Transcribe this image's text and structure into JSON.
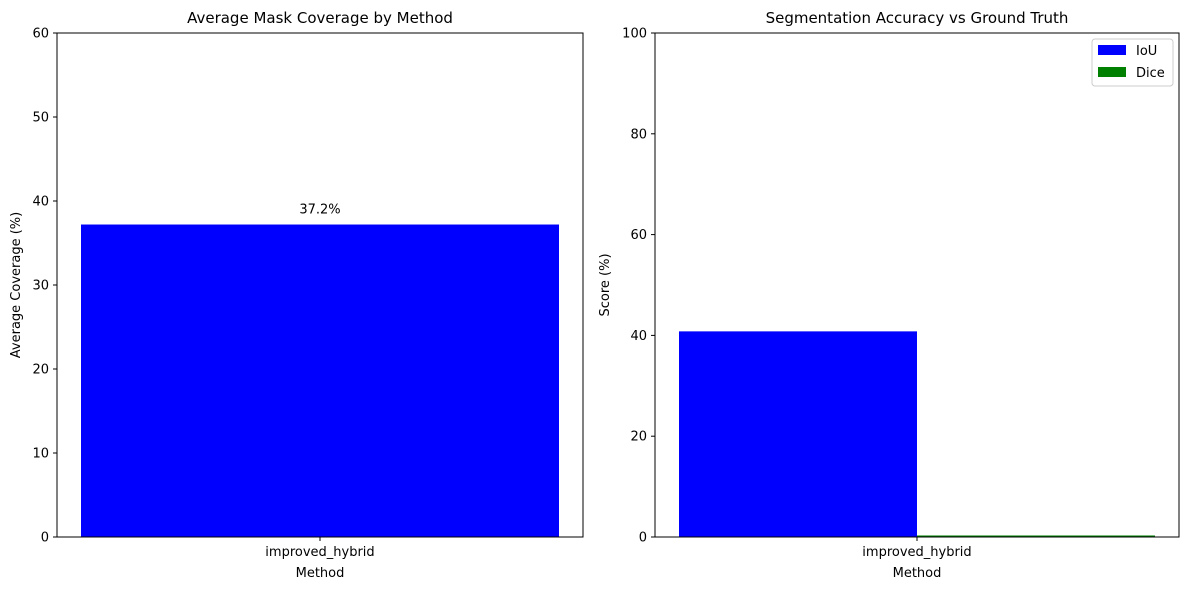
{
  "chart_data": [
    {
      "type": "bar",
      "title": "Average Mask Coverage by Method",
      "xlabel": "Method",
      "ylabel": "Average Coverage (%)",
      "categories": [
        "improved_hybrid"
      ],
      "series": [
        {
          "values": [
            37.2
          ],
          "color": "#0000ff"
        }
      ],
      "data_labels": [
        "37.2%"
      ],
      "ylim": [
        0,
        60
      ],
      "yticks": [
        0,
        10,
        20,
        30,
        40,
        50,
        60
      ],
      "grid": false
    },
    {
      "type": "bar",
      "title": "Segmentation Accuracy vs Ground Truth",
      "xlabel": "Method",
      "ylabel": "Score (%)",
      "categories": [
        "improved_hybrid"
      ],
      "series": [
        {
          "name": "IoU",
          "values": [
            40.8
          ],
          "color": "#0000ff"
        },
        {
          "name": "Dice",
          "values": [
            0.3
          ],
          "color": "#008000"
        }
      ],
      "ylim": [
        0,
        100
      ],
      "yticks": [
        0,
        20,
        40,
        60,
        80,
        100
      ],
      "legend_position": "top-right",
      "grid": false
    }
  ]
}
